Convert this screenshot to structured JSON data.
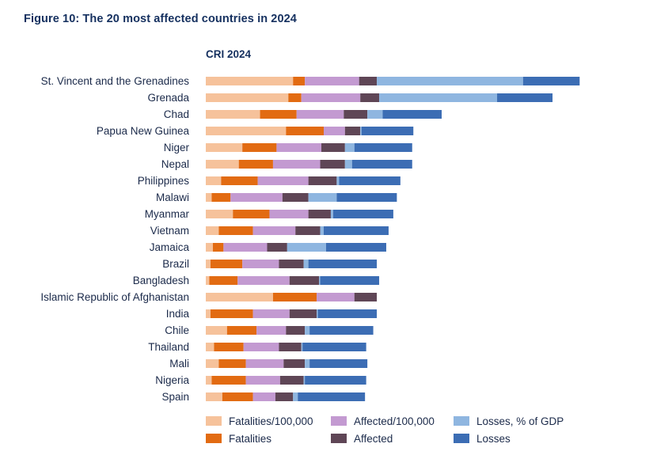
{
  "figure_title": "Figure 10: The 20 most affected countries in 2024",
  "chart_data": {
    "type": "bar",
    "orientation": "horizontal",
    "stacked": true,
    "title": "CRI 2024",
    "xlabel": "",
    "ylabel": "",
    "grid": false,
    "legend_position": "bottom",
    "categories": [
      "St. Vincent and the Grenadines",
      "Grenada",
      "Chad",
      "Papua New Guinea",
      "Niger",
      "Nepal",
      "Philippines",
      "Malawi",
      "Myanmar",
      "Vietnam",
      "Jamaica",
      "Brazil",
      "Bangladesh",
      "Islamic Republic of Afghanistan",
      "India",
      "Chile",
      "Thailand",
      "Mali",
      "Nigeria",
      "Spain"
    ],
    "series": [
      {
        "name": "Fatalities/100,000",
        "color": "#f6c29b",
        "values": [
          37.0,
          35.0,
          23.0,
          34.0,
          15.5,
          14.0,
          6.5,
          2.5,
          11.5,
          5.5,
          3.0,
          2.0,
          1.5,
          28.5,
          2.0,
          9.0,
          3.5,
          5.5,
          2.5,
          7.0
        ]
      },
      {
        "name": "Fatalities",
        "color": "#e26b12",
        "values": [
          5.0,
          5.5,
          15.5,
          16.0,
          14.5,
          14.5,
          15.5,
          8.0,
          15.5,
          14.5,
          4.5,
          13.5,
          12.0,
          18.5,
          18.0,
          12.5,
          12.5,
          11.5,
          14.5,
          13.0
        ]
      },
      {
        "name": "Affected/100,000",
        "color": "#c39ad1",
        "values": [
          23.0,
          25.0,
          20.0,
          9.0,
          19.0,
          20.0,
          21.5,
          22.0,
          16.5,
          18.0,
          18.5,
          15.5,
          22.0,
          16.0,
          15.5,
          12.5,
          15.0,
          16.0,
          14.5,
          9.5
        ]
      },
      {
        "name": "Affected",
        "color": "#5f4656",
        "values": [
          7.5,
          8.0,
          10.0,
          6.5,
          10.0,
          10.5,
          12.0,
          11.0,
          9.5,
          10.5,
          8.5,
          10.5,
          12.5,
          9.5,
          11.5,
          8.0,
          9.5,
          9.0,
          10.0,
          7.5
        ]
      },
      {
        "name": "Losses, % of GDP",
        "color": "#8fb6e0",
        "values": [
          62.0,
          50.0,
          6.5,
          0.5,
          4.0,
          3.0,
          1.0,
          12.0,
          1.0,
          1.5,
          16.5,
          2.0,
          0.5,
          0.0,
          0.5,
          2.0,
          0.5,
          2.0,
          0.5,
          2.0
        ]
      },
      {
        "name": "Losses",
        "color": "#3c6db4",
        "values": [
          24.0,
          23.5,
          25.0,
          22.0,
          24.5,
          25.5,
          26.0,
          25.5,
          25.5,
          27.5,
          25.5,
          29.0,
          25.0,
          0.0,
          25.0,
          27.0,
          27.0,
          24.5,
          26.0,
          28.5
        ]
      }
    ],
    "legend": [
      [
        "Fatalities/100,000",
        "Affected/100,000",
        "Losses, % of GDP"
      ],
      [
        "Fatalities",
        "Affected",
        "Losses"
      ]
    ]
  }
}
